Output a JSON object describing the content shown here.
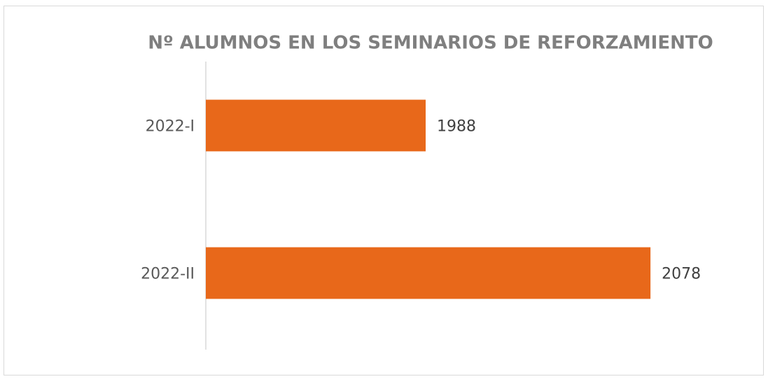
{
  "chart_data": {
    "type": "bar",
    "orientation": "horizontal",
    "title": "Nº ALUMNOS EN LOS SEMINARIOS DE REFORZAMIENTO",
    "categories": [
      "2022-I",
      "2022-II"
    ],
    "values": [
      1988,
      2078
    ],
    "color": "#e8681a",
    "xlim": [
      1900,
      2120
    ],
    "grid": false
  }
}
